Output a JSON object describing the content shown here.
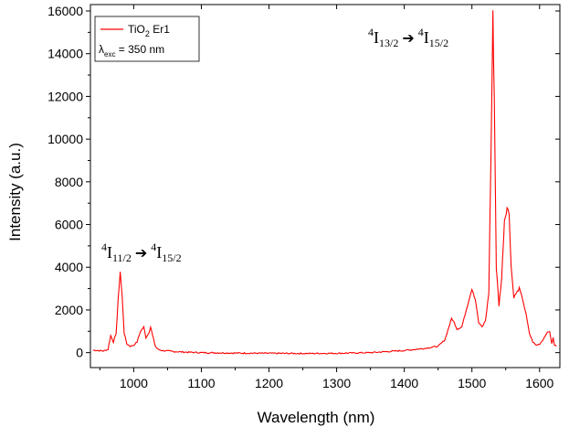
{
  "chart_data": {
    "type": "line",
    "title": "",
    "xlabel": "Wavelength (nm)",
    "ylabel": "Intensity (a.u.)",
    "xlim": [
      936,
      1630
    ],
    "ylim": [
      -700,
      16300
    ],
    "x_ticks": [
      1000,
      1100,
      1200,
      1300,
      1400,
      1500,
      1600
    ],
    "x_tick_labels": [
      "1000",
      "1100",
      "1200",
      "1300",
      "1400",
      "1500",
      "1600"
    ],
    "y_ticks": [
      0,
      2000,
      4000,
      6000,
      8000,
      10000,
      12000,
      14000,
      16000
    ],
    "y_tick_labels": [
      "0",
      "2000",
      "4000",
      "6000",
      "8000",
      "10000",
      "12000",
      "14000",
      "16000"
    ],
    "grid": false,
    "legend": {
      "placement": "top-left",
      "entries": [
        {
          "name_base": "TiO",
          "name_sub": "2",
          "name_rest": " Er1",
          "color": "#ff0000"
        }
      ],
      "excitation": {
        "symbol": "λ",
        "sub": "exc",
        "rest": " = 350 nm"
      }
    },
    "series": [
      {
        "name": "TiO2 Er1",
        "color": "#ff0000",
        "x": [
          940,
          955,
          962,
          966,
          970,
          974,
          977,
          980,
          983,
          986,
          990,
          995,
          1000,
          1005,
          1010,
          1015,
          1018,
          1022,
          1025,
          1028,
          1032,
          1036,
          1042,
          1060,
          1080,
          1100,
          1150,
          1200,
          1250,
          1300,
          1350,
          1400,
          1430,
          1450,
          1460,
          1466,
          1470,
          1474,
          1478,
          1485,
          1490,
          1495,
          1500,
          1505,
          1510,
          1515,
          1520,
          1525,
          1528,
          1531,
          1533,
          1536,
          1540,
          1544,
          1548,
          1552,
          1555,
          1558,
          1562,
          1566,
          1570,
          1575,
          1580,
          1585,
          1590,
          1595,
          1600,
          1605,
          1610,
          1615,
          1618,
          1620,
          1622,
          1625
        ],
        "values": [
          120,
          80,
          150,
          800,
          500,
          900,
          2500,
          3800,
          2600,
          900,
          400,
          300,
          350,
          500,
          1000,
          1200,
          700,
          900,
          1200,
          800,
          300,
          150,
          100,
          50,
          20,
          0,
          -20,
          -30,
          -40,
          -30,
          0,
          100,
          200,
          300,
          600,
          1200,
          1600,
          1400,
          1100,
          1200,
          1800,
          2400,
          3000,
          2500,
          1400,
          1200,
          1500,
          2800,
          9000,
          15800,
          12000,
          4000,
          2200,
          3500,
          6200,
          6800,
          6500,
          4000,
          2600,
          2800,
          3000,
          2500,
          1800,
          900,
          500,
          350,
          400,
          600,
          900,
          1000,
          400,
          700,
          350,
          300
        ]
      }
    ],
    "annotations": [
      {
        "base": "4",
        "letter": "I",
        "sub": "11/2",
        "arrow": "➔",
        "base2": "4",
        "letter2": "I",
        "sub2": "15/2",
        "near_x": 1000,
        "near_y": 4200
      },
      {
        "base": "4",
        "letter": "I",
        "sub": "13/2",
        "arrow": "➔",
        "base2": "4",
        "letter2": "I",
        "sub2": "15/2",
        "near_x": 1440,
        "near_y": 15700
      }
    ]
  }
}
